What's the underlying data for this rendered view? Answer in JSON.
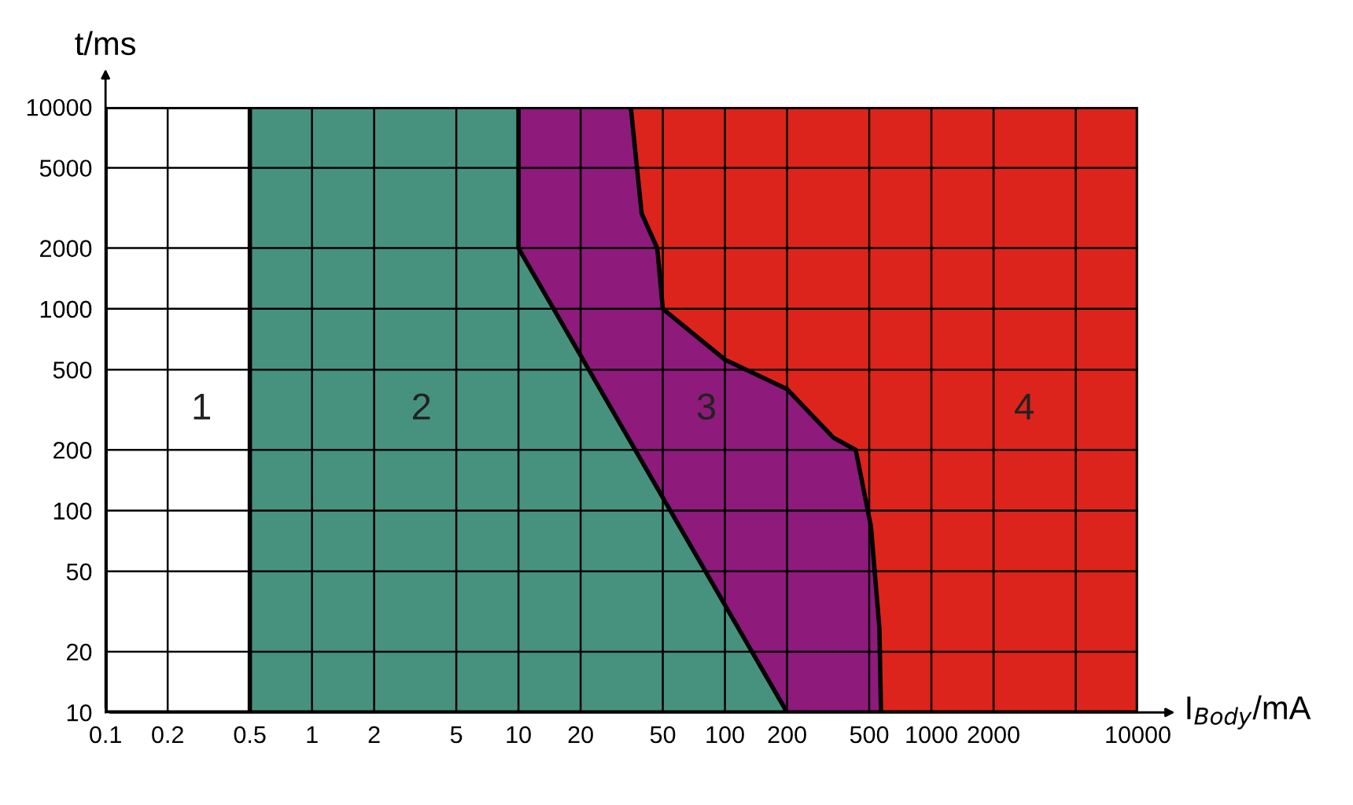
{
  "chart_data": {
    "type": "area",
    "xlabel": "I$_{Body}$/mA",
    "ylabel": "t/ms",
    "log": "xy",
    "grid": true,
    "xlim": [
      0.1,
      10000
    ],
    "ylim": [
      10,
      10000
    ],
    "xticks": [
      0.1,
      0.2,
      0.5,
      1,
      2,
      5,
      10,
      20,
      50,
      100,
      200,
      500,
      1000,
      2000,
      {
        "value": 5000,
        "label": null
      },
      10000
    ],
    "yticks": [
      10,
      20,
      50,
      100,
      200,
      500,
      1000,
      2000,
      5000,
      10000
    ],
    "series": [
      {
        "color": "#dc241c",
        "x": [
          0.1,
          10000
        ],
        "values": [
          10000,
          10000
        ]
      },
      {
        "color": "#8e1a7b",
        "x": [
          0.1,
          35,
          39.5,
          47,
          50,
          100,
          200,
          335,
          430,
          510,
          560,
          570
        ],
        "values": [
          10000,
          10000,
          2970,
          2000,
          1000,
          560,
          400,
          230,
          200,
          83,
          26,
          10
        ]
      },
      {
        "color": "#47927f",
        "x": [
          0.1,
          10,
          10,
          200
        ],
        "values": [
          10000,
          10000,
          2000,
          10
        ]
      },
      {
        "color": "#ffffff",
        "x": [
          0.1,
          0.5
        ],
        "values": [
          10000,
          10000
        ]
      }
    ],
    "annotations": [
      "1",
      "2",
      "3",
      "4"
    ]
  }
}
